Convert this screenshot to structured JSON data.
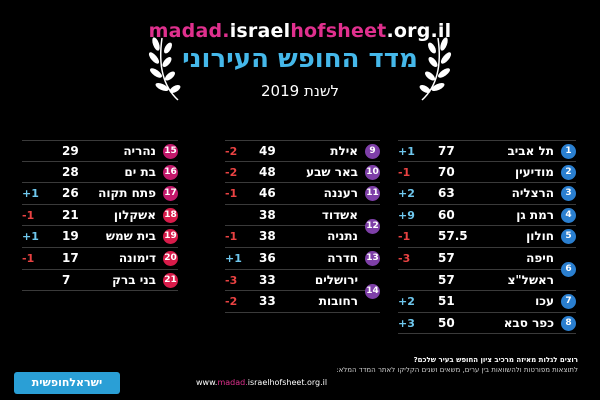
{
  "header": {
    "url_parts": [
      "madad.",
      "israel",
      "hofsheet",
      ".org.il"
    ],
    "title": "מדד החופש העירוני",
    "subtitle": "לשנת 2019"
  },
  "colors": {
    "accent_blue": "#45b8ea",
    "accent_pink": "#e0308e",
    "badge_blue": "#2a7fd0",
    "badge_purple": "#7e3fa8",
    "badge_magenta": "#c2186b",
    "badge_red": "#d81b4a",
    "change_up": "#6fc8ee",
    "change_down": "#e94242"
  },
  "columns": [
    {
      "rows": [
        {
          "rank": "1",
          "name": "תל אביב",
          "score": "77",
          "change": "+1",
          "dir": "up",
          "badge_color": "#2a7fd0",
          "show_badge": true
        },
        {
          "rank": "2",
          "name": "מודיעין",
          "score": "70",
          "change": "-1",
          "dir": "down",
          "badge_color": "#2a7fd0",
          "show_badge": true
        },
        {
          "rank": "3",
          "name": "הרצליה",
          "score": "63",
          "change": "+2",
          "dir": "up",
          "badge_color": "#2a7fd0",
          "show_badge": true
        },
        {
          "rank": "4",
          "name": "רמת גן",
          "score": "60",
          "change": "+9",
          "dir": "up",
          "badge_color": "#2a7fd0",
          "show_badge": true
        },
        {
          "rank": "5",
          "name": "חולון",
          "score": "57.5",
          "change": "-1",
          "dir": "down",
          "badge_color": "#2a7fd0",
          "show_badge": true
        },
        {
          "rank": "6",
          "name": "חיפה",
          "score": "57",
          "change": "-3",
          "dir": "down",
          "badge_color": "#2a7fd0",
          "show_badge": true
        },
        {
          "rank": "",
          "name": "ראשל\"צ",
          "score": "57",
          "change": "",
          "dir": "",
          "badge_color": "#2a7fd0",
          "show_badge": false
        },
        {
          "rank": "7",
          "name": "עכו",
          "score": "51",
          "change": "+2",
          "dir": "up",
          "badge_color": "#2a7fd0",
          "show_badge": true
        },
        {
          "rank": "8",
          "name": "כפר סבא",
          "score": "50",
          "change": "+3",
          "dir": "up",
          "badge_color": "#2a7fd0",
          "show_badge": true
        }
      ]
    },
    {
      "rows": [
        {
          "rank": "9",
          "name": "אילת",
          "score": "49",
          "change": "-2",
          "dir": "down",
          "badge_color": "#7e3fa8",
          "show_badge": true
        },
        {
          "rank": "10",
          "name": "באר שבע",
          "score": "48",
          "change": "-2",
          "dir": "down",
          "badge_color": "#7e3fa8",
          "show_badge": true
        },
        {
          "rank": "11",
          "name": "רעננה",
          "score": "46",
          "change": "-1",
          "dir": "down",
          "badge_color": "#7e3fa8",
          "show_badge": true
        },
        {
          "rank": "12",
          "name": "אשדוד",
          "score": "38",
          "change": "",
          "dir": "",
          "badge_color": "#7e3fa8",
          "show_badge": false
        },
        {
          "rank": "",
          "name": "נתניה",
          "score": "38",
          "change": "-1",
          "dir": "down",
          "badge_color": "#7e3fa8",
          "show_badge": true
        },
        {
          "rank": "13",
          "name": "חדרה",
          "score": "36",
          "change": "+1",
          "dir": "up",
          "badge_color": "#7e3fa8",
          "show_badge": true
        },
        {
          "rank": "14",
          "name": "ירושלים",
          "score": "33",
          "change": "-3",
          "dir": "down",
          "badge_color": "#7e3fa8",
          "show_badge": false
        },
        {
          "rank": "",
          "name": "רחובות",
          "score": "33",
          "change": "-2",
          "dir": "down",
          "badge_color": "#7e3fa8",
          "show_badge": true
        }
      ]
    },
    {
      "rows": [
        {
          "rank": "15",
          "name": "נהריה",
          "score": "29",
          "change": "",
          "dir": "",
          "badge_color": "#c2186b",
          "show_badge": true
        },
        {
          "rank": "16",
          "name": "בת ים",
          "score": "28",
          "change": "",
          "dir": "",
          "badge_color": "#c2186b",
          "show_badge": true
        },
        {
          "rank": "17",
          "name": "פתח תקוה",
          "score": "26",
          "change": "+1",
          "dir": "up",
          "badge_color": "#c2186b",
          "show_badge": true
        },
        {
          "rank": "18",
          "name": "אשקלון",
          "score": "21",
          "change": "-1",
          "dir": "down",
          "badge_color": "#d81b4a",
          "show_badge": true
        },
        {
          "rank": "19",
          "name": "בית שמש",
          "score": "19",
          "change": "+1",
          "dir": "up",
          "badge_color": "#d81b4a",
          "show_badge": true
        },
        {
          "rank": "20",
          "name": "דימונה",
          "score": "17",
          "change": "-1",
          "dir": "down",
          "badge_color": "#d81b4a",
          "show_badge": true
        },
        {
          "rank": "21",
          "name": "בני ברק",
          "score": "7",
          "change": "",
          "dir": "",
          "badge_color": "#d81b4a",
          "show_badge": true
        }
      ]
    }
  ],
  "footer": {
    "note1": "רוצים לגלות מאיזה מרכיב ציון החופש בעיר שלכם?",
    "note2": "לתוצאות מפורטות ולהשוואות בין ערים, משאים ושנים הקליקו לאתר המדד המלא:",
    "url_parts": [
      "www.",
      "madad.",
      "israelhofsheet",
      ".org.il"
    ],
    "logo_text": "ישראלחופשית"
  }
}
